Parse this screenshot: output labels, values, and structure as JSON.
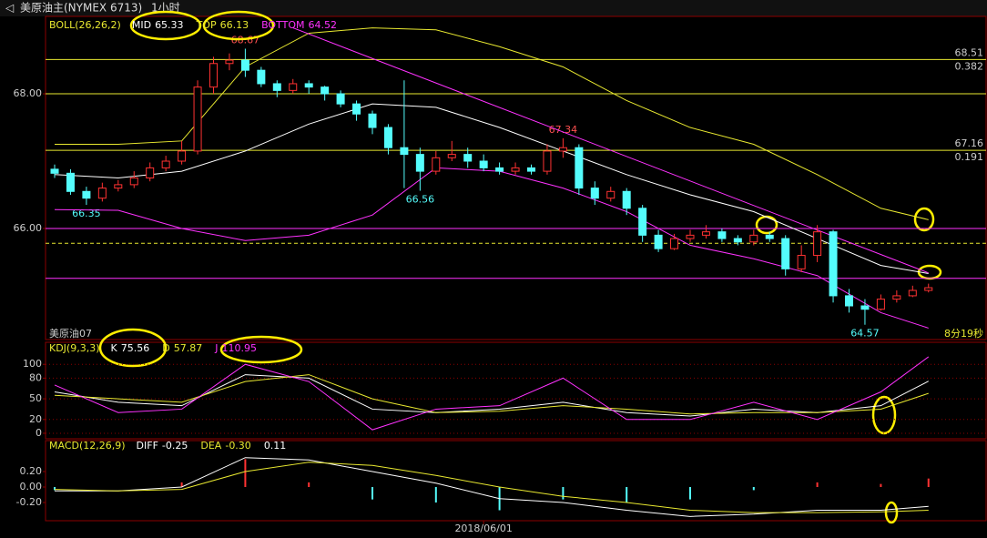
{
  "chart_data": {
    "type": "candlestick",
    "header": {
      "symbol": "美原油主(NYMEX 6713)",
      "period": "1小时"
    },
    "ylim": [
      64.35,
      69.15
    ],
    "yticks": [
      {
        "value": 68,
        "label": "68.00"
      },
      {
        "value": 66,
        "label": "66.00"
      }
    ],
    "open": [
      66.88,
      66.82,
      66.55,
      66.45,
      66.6,
      66.65,
      66.75,
      66.9,
      67.0,
      67.15,
      68.1,
      68.45,
      68.5,
      68.35,
      68.15,
      68.05,
      68.15,
      68.1,
      68.0,
      67.85,
      67.7,
      67.5,
      67.2,
      67.1,
      66.85,
      67.05,
      67.1,
      67.0,
      66.9,
      66.85,
      66.9,
      66.85,
      67.15,
      67.2,
      66.6,
      66.45,
      66.55,
      66.3,
      65.9,
      65.7,
      65.85,
      65.9,
      65.95,
      65.85,
      65.8,
      65.9,
      65.85,
      65.4,
      65.6,
      65.95,
      65.0,
      64.85,
      64.8,
      64.95,
      65.0,
      65.08
    ],
    "high": [
      66.95,
      66.88,
      66.62,
      66.68,
      66.72,
      66.85,
      66.98,
      67.08,
      67.3,
      68.2,
      68.55,
      68.6,
      68.67,
      68.4,
      68.2,
      68.22,
      68.2,
      68.12,
      68.05,
      67.9,
      67.75,
      67.55,
      68.2,
      67.2,
      67.15,
      67.3,
      67.2,
      67.1,
      66.98,
      66.98,
      66.95,
      67.25,
      67.34,
      67.25,
      66.7,
      66.62,
      66.6,
      66.35,
      65.98,
      65.92,
      65.98,
      66.05,
      66.0,
      65.9,
      65.98,
      65.95,
      65.9,
      65.75,
      66.05,
      65.98,
      65.1,
      64.95,
      65.02,
      65.08,
      65.15,
      65.18
    ],
    "low": [
      66.75,
      66.5,
      66.35,
      66.4,
      66.55,
      66.6,
      66.7,
      66.85,
      66.95,
      67.1,
      68.0,
      68.35,
      68.25,
      68.1,
      67.95,
      68.0,
      68.0,
      67.9,
      67.8,
      67.6,
      67.4,
      67.1,
      66.6,
      66.56,
      66.8,
      67.0,
      66.9,
      66.85,
      66.8,
      66.8,
      66.8,
      66.8,
      67.05,
      66.5,
      66.35,
      66.4,
      66.2,
      65.8,
      65.65,
      65.68,
      65.8,
      65.85,
      65.8,
      65.75,
      65.75,
      65.8,
      65.3,
      65.35,
      65.5,
      64.9,
      64.75,
      64.57,
      64.78,
      64.9,
      64.98,
      65.05
    ],
    "close": [
      66.82,
      66.55,
      66.45,
      66.6,
      66.65,
      66.75,
      66.9,
      67.0,
      67.15,
      68.1,
      68.45,
      68.5,
      68.35,
      68.15,
      68.05,
      68.15,
      68.1,
      68.0,
      67.85,
      67.7,
      67.5,
      67.2,
      67.1,
      66.85,
      67.05,
      67.1,
      67.0,
      66.9,
      66.85,
      66.9,
      66.85,
      67.15,
      67.2,
      66.6,
      66.45,
      66.55,
      66.3,
      65.9,
      65.7,
      65.85,
      65.9,
      65.95,
      65.85,
      65.8,
      65.9,
      65.85,
      65.4,
      65.6,
      65.95,
      65.0,
      64.85,
      64.8,
      64.95,
      65.0,
      65.08,
      65.12
    ],
    "up_color": "#ff3232",
    "down_color": "#54fcfc",
    "x_label": {
      "text": "2018/06/01",
      "index": 27
    },
    "indicator_x": [
      0,
      4,
      8,
      12,
      16,
      20,
      24,
      28,
      32,
      36,
      40,
      44,
      48,
      52,
      55
    ],
    "boll": {
      "title": "BOLL(26,26,2)",
      "series": [
        {
          "name": "MID",
          "color": "#ffffff",
          "values": [
            66.8,
            66.75,
            66.85,
            67.15,
            67.55,
            67.85,
            67.8,
            67.5,
            67.15,
            66.8,
            66.5,
            66.25,
            65.85,
            65.45,
            65.33
          ]
        },
        {
          "name": "TOP",
          "color": "#e8e830",
          "values": [
            67.25,
            67.25,
            67.3,
            68.4,
            68.9,
            68.98,
            68.95,
            68.7,
            68.4,
            67.9,
            67.5,
            67.25,
            66.8,
            66.3,
            66.13
          ]
        },
        {
          "name": "BOTTOM",
          "color": "#ff32ff",
          "values": [
            66.28,
            66.27,
            66.0,
            65.82,
            65.9,
            66.2,
            66.9,
            66.85,
            66.6,
            66.25,
            65.75,
            65.55,
            65.3,
            64.75,
            64.52
          ]
        }
      ]
    },
    "trendline": {
      "x": [
        15,
        55
      ],
      "values": [
        68.98,
        65.34
      ],
      "color": "#ff32ff"
    },
    "fib": [
      {
        "price": 68.51,
        "ratio": 0.382
      },
      {
        "price": 67.16,
        "ratio": 0.191
      }
    ],
    "hlines": [
      {
        "price": 68.0,
        "color": "#e8e830"
      },
      {
        "price": 66.0,
        "color": "#ff32ff"
      },
      {
        "price": 65.26,
        "color": "#ff32ff"
      },
      {
        "price": 65.78,
        "color": "#e8e830",
        "dashed": true
      }
    ],
    "contract": "美原油07",
    "countdown": "8分19秒",
    "kdj": {
      "title": "KDJ(9,3,3)",
      "ylim": [
        -8,
        132
      ],
      "yticks": [
        100,
        80,
        50,
        20,
        0
      ],
      "series": [
        {
          "name": "K",
          "color": "#ffffff",
          "values": [
            60,
            45,
            40,
            85,
            80,
            35,
            30,
            35,
            45,
            30,
            25,
            35,
            30,
            40,
            75.56
          ]
        },
        {
          "name": "D",
          "color": "#e8e830",
          "values": [
            55,
            50,
            45,
            75,
            85,
            50,
            30,
            32,
            40,
            35,
            28,
            30,
            30,
            35,
            57.87
          ]
        },
        {
          "name": "J",
          "color": "#ff32ff",
          "values": [
            70,
            30,
            35,
            100,
            75,
            5,
            35,
            40,
            80,
            20,
            20,
            45,
            20,
            60,
            110.95
          ]
        }
      ]
    },
    "macd": {
      "title": "MACD(12,26,9)",
      "ylim": [
        -0.435,
        0.6
      ],
      "yticks": [
        {
          "value": 0.2,
          "label": "0.20"
        },
        {
          "value": 0,
          "label": "0.00"
        },
        {
          "value": -0.2,
          "label": "-0.20"
        }
      ],
      "series": [
        {
          "name": "DIFF",
          "color": "#ffffff",
          "values": [
            -0.05,
            -0.05,
            0.0,
            0.38,
            0.35,
            0.2,
            0.05,
            -0.15,
            -0.2,
            -0.3,
            -0.38,
            -0.35,
            -0.3,
            -0.3,
            -0.25
          ]
        },
        {
          "name": "DEA",
          "color": "#e8e830",
          "values": [
            -0.03,
            -0.05,
            -0.03,
            0.2,
            0.32,
            0.28,
            0.15,
            0.0,
            -0.12,
            -0.2,
            -0.3,
            -0.33,
            -0.33,
            -0.32,
            -0.3
          ],
          "current_label": "-0.30"
        }
      ],
      "histogram": [
        -0.04,
        0,
        0.06,
        0.36,
        0.06,
        -0.16,
        -0.2,
        -0.3,
        -0.16,
        -0.2,
        -0.16,
        -0.04,
        0.06,
        0.04,
        0.11
      ]
    }
  }
}
